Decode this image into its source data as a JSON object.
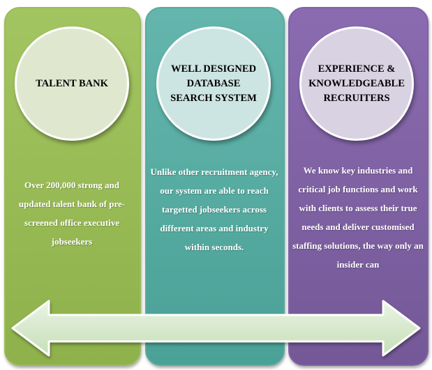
{
  "panels": [
    {
      "title": "TALENT BANK",
      "text": "Over 200,000 strong and updated talent bank of pre-screened office executive jobseekers"
    },
    {
      "title": "WELL DESIGNED DATABASE SEARCH SYSTEM",
      "text": "Unlike other recruitment agency, our system are able to reach targetted jobseekers across different areas and industry within seconds."
    },
    {
      "title": "EXPERIENCE & KNOWLEDGEABLE RECRUITERS",
      "text": "We know key industries and critical job functions and work with clients to assess their true needs and deliver customised staffing solutions, the way only an insider can"
    }
  ],
  "colors": {
    "green": "#9bbb59",
    "teal": "#4bacc6",
    "purple": "#8064a2",
    "arrow_fill": "#cfe6c4"
  }
}
